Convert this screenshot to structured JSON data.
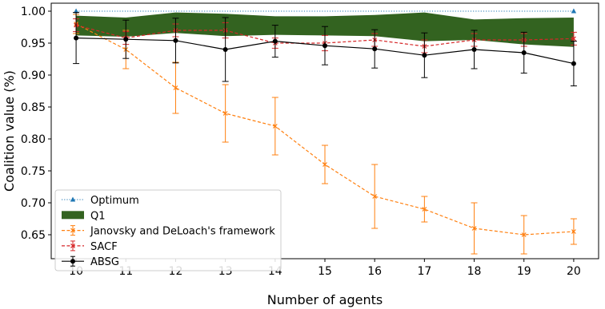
{
  "chart_data": {
    "type": "line",
    "xlabel": "Number of agents",
    "ylabel": "Coalition value (%)",
    "x": [
      10,
      11,
      12,
      13,
      14,
      15,
      16,
      17,
      18,
      19,
      20
    ],
    "xlim": [
      9.5,
      20.5
    ],
    "ylim": [
      0.6125,
      1.0125
    ],
    "yticks": [
      0.65,
      0.7,
      0.75,
      0.8,
      0.85,
      0.9,
      0.95,
      1.0
    ],
    "yticklabels": [
      "0.65",
      "0.70",
      "0.75",
      "0.80",
      "0.85",
      "0.90",
      "0.95",
      "1.00"
    ],
    "xticklabels": [
      "10",
      "11",
      "12",
      "13",
      "14",
      "15",
      "16",
      "17",
      "18",
      "19",
      "20"
    ],
    "grid": false,
    "legend_position": "lower-left",
    "optimum": {
      "name": "Optimum",
      "color": "#1f77b4",
      "values": [
        1.0,
        1.0,
        1.0,
        1.0,
        1.0,
        1.0,
        1.0,
        1.0,
        1.0,
        1.0,
        1.0
      ]
    },
    "q1_band": {
      "name": "Q1",
      "color": "#336320",
      "lower": [
        0.962,
        0.96,
        0.966,
        0.961,
        0.963,
        0.962,
        0.961,
        0.953,
        0.955,
        0.948,
        0.944
      ],
      "upper": [
        0.993,
        0.99,
        0.998,
        0.996,
        0.992,
        0.992,
        0.994,
        0.998,
        0.987,
        0.989,
        0.99
      ]
    },
    "series": [
      {
        "name": "Janovsky and DeLoach's framework",
        "color": "#ff7f0e",
        "values": [
          0.98,
          0.94,
          0.88,
          0.84,
          0.82,
          0.76,
          0.71,
          0.69,
          0.66,
          0.65,
          0.655
        ],
        "err": [
          0.015,
          0.03,
          0.04,
          0.045,
          0.045,
          0.03,
          0.05,
          0.02,
          0.04,
          0.03,
          0.02
        ]
      },
      {
        "name": "SACF",
        "color": "#d62728",
        "values": [
          0.978,
          0.958,
          0.97,
          0.97,
          0.95,
          0.95,
          0.955,
          0.945,
          0.955,
          0.955,
          0.957
        ],
        "err": [
          0.01,
          0.01,
          0.01,
          0.012,
          0.008,
          0.012,
          0.01,
          0.01,
          0.01,
          0.01,
          0.01
        ]
      },
      {
        "name": "ABSG",
        "color": "#000000",
        "values": [
          0.958,
          0.956,
          0.954,
          0.94,
          0.953,
          0.946,
          0.941,
          0.931,
          0.94,
          0.935,
          0.918
        ],
        "err": [
          0.04,
          0.03,
          0.035,
          0.05,
          0.025,
          0.03,
          0.03,
          0.035,
          0.03,
          0.032,
          0.035
        ]
      }
    ]
  }
}
